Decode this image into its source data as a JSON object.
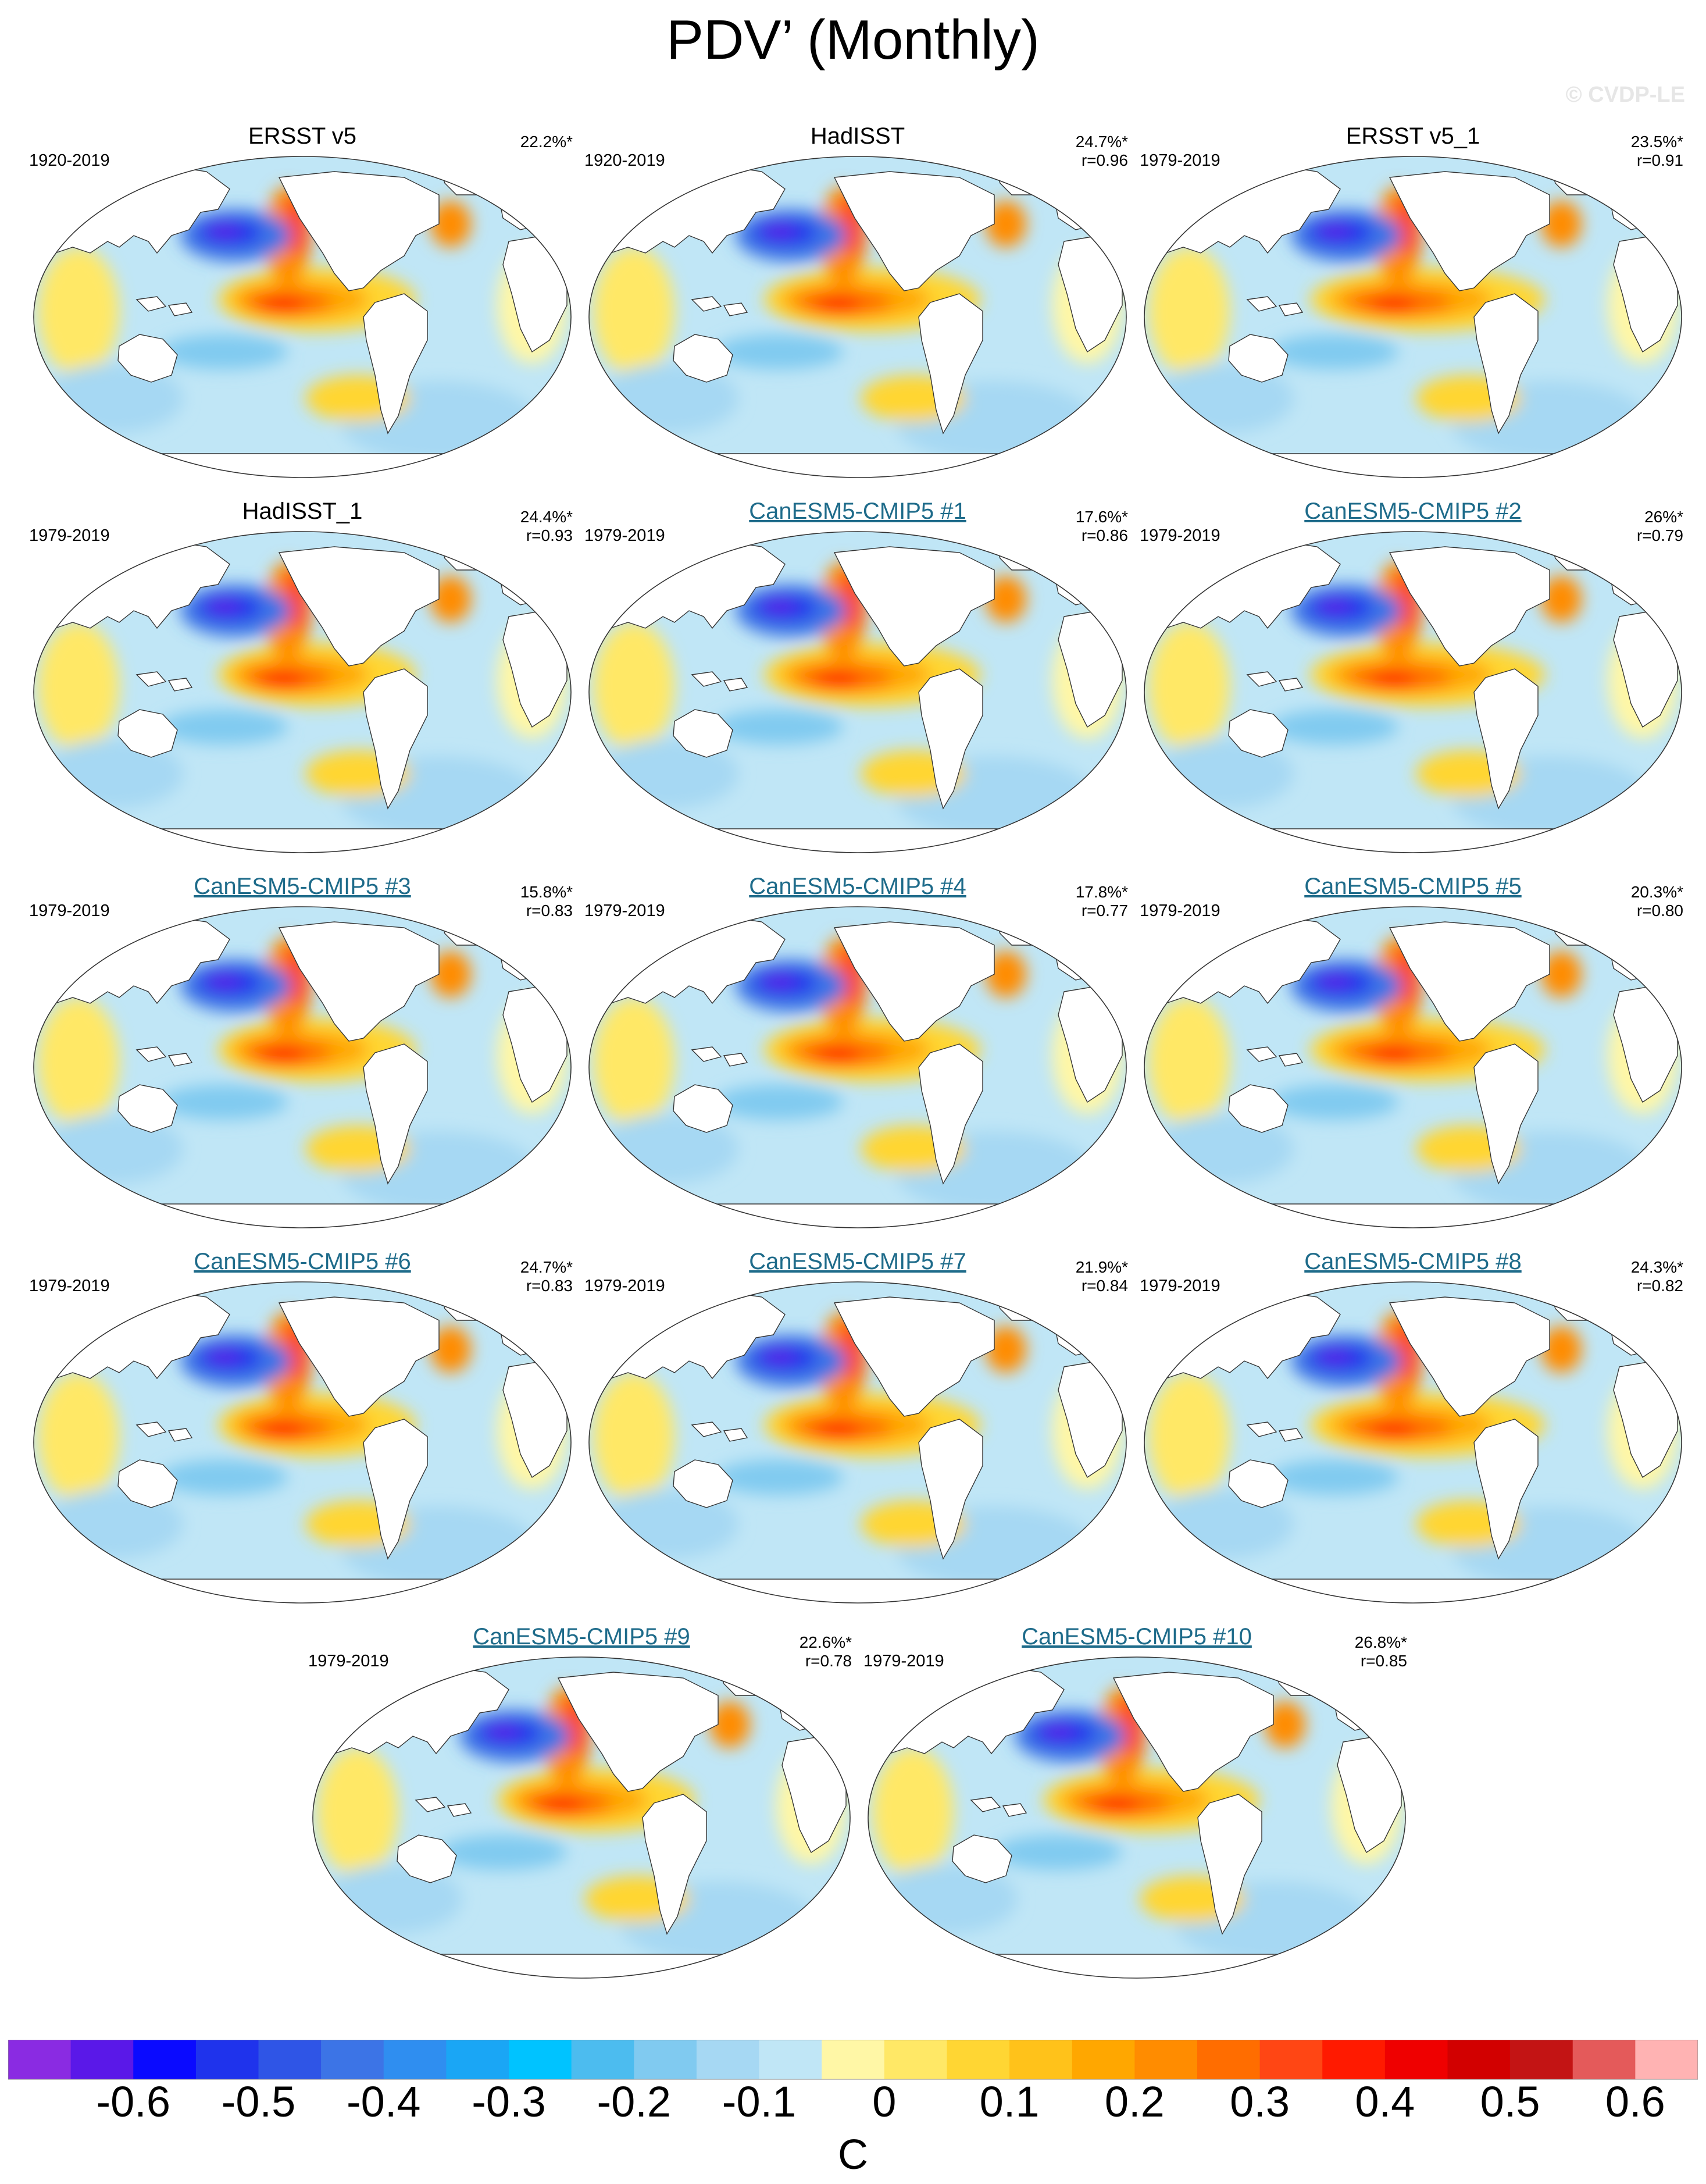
{
  "title": "PDV’ (Monthly)",
  "watermark": "© CVDP-LE",
  "colors": {
    "model_title": "#1e6b8a",
    "land": "#ffffff",
    "coast": "#333333",
    "neutral_ocean": "#c0e6f6"
  },
  "chart_data": [
    {
      "type": "map",
      "title": "ERSST v5",
      "title_kind": "observed",
      "period": "1920-2019",
      "pct": "22.2%*",
      "r": ""
    },
    {
      "type": "map",
      "title": "HadISST",
      "title_kind": "observed",
      "period": "1920-2019",
      "pct": "24.7%*",
      "r": "r=0.96"
    },
    {
      "type": "map",
      "title": "ERSST v5_1",
      "title_kind": "observed",
      "period": "1979-2019",
      "pct": "23.5%*",
      "r": "r=0.91"
    },
    {
      "type": "map",
      "title": "HadISST_1",
      "title_kind": "observed",
      "period": "1979-2019",
      "pct": "24.4%*",
      "r": "r=0.93"
    },
    {
      "type": "map",
      "title": "CanESM5-CMIP5 #1",
      "title_kind": "model",
      "period": "1979-2019",
      "pct": "17.6%*",
      "r": "r=0.86"
    },
    {
      "type": "map",
      "title": "CanESM5-CMIP5 #2",
      "title_kind": "model",
      "period": "1979-2019",
      "pct": "26%*",
      "r": "r=0.79"
    },
    {
      "type": "map",
      "title": "CanESM5-CMIP5 #3",
      "title_kind": "model",
      "period": "1979-2019",
      "pct": "15.8%*",
      "r": "r=0.83"
    },
    {
      "type": "map",
      "title": "CanESM5-CMIP5 #4",
      "title_kind": "model",
      "period": "1979-2019",
      "pct": "17.8%*",
      "r": "r=0.77"
    },
    {
      "type": "map",
      "title": "CanESM5-CMIP5 #5",
      "title_kind": "model",
      "period": "1979-2019",
      "pct": "20.3%*",
      "r": "r=0.80"
    },
    {
      "type": "map",
      "title": "CanESM5-CMIP5 #6",
      "title_kind": "model",
      "period": "1979-2019",
      "pct": "24.7%*",
      "r": "r=0.83"
    },
    {
      "type": "map",
      "title": "CanESM5-CMIP5 #7",
      "title_kind": "model",
      "period": "1979-2019",
      "pct": "21.9%*",
      "r": "r=0.84"
    },
    {
      "type": "map",
      "title": "CanESM5-CMIP5 #8",
      "title_kind": "model",
      "period": "1979-2019",
      "pct": "24.3%*",
      "r": "r=0.82"
    },
    {
      "type": "map",
      "title": "CanESM5-CMIP5 #9",
      "title_kind": "model",
      "period": "1979-2019",
      "pct": "22.6%*",
      "r": "r=0.78"
    },
    {
      "type": "map",
      "title": "CanESM5-CMIP5 #10",
      "title_kind": "model",
      "period": "1979-2019",
      "pct": "26.8%*",
      "r": "r=0.85"
    }
  ],
  "colorbar": {
    "unit": "C",
    "tick_labels": [
      "-0.6",
      "-0.5",
      "-0.4",
      "-0.3",
      "-0.2",
      "-0.1",
      "0",
      "0.1",
      "0.2",
      "0.3",
      "0.4",
      "0.5",
      "0.6"
    ],
    "colors": [
      "#8a2be2",
      "#5a18e8",
      "#0a0aff",
      "#1f33ec",
      "#2f55e6",
      "#3c74e6",
      "#2f8ef0",
      "#1aa6f5",
      "#00c3ff",
      "#4cbcef",
      "#80caf0",
      "#a6d8f3",
      "#c0e6f6",
      "#fff7a6",
      "#ffe866",
      "#ffd633",
      "#ffc21a",
      "#ffa700",
      "#ff8c00",
      "#ff6d00",
      "#ff4614",
      "#ff1a00",
      "#ef0000",
      "#d20000",
      "#c31414",
      "#e45a5a",
      "#ffb3b3"
    ]
  }
}
